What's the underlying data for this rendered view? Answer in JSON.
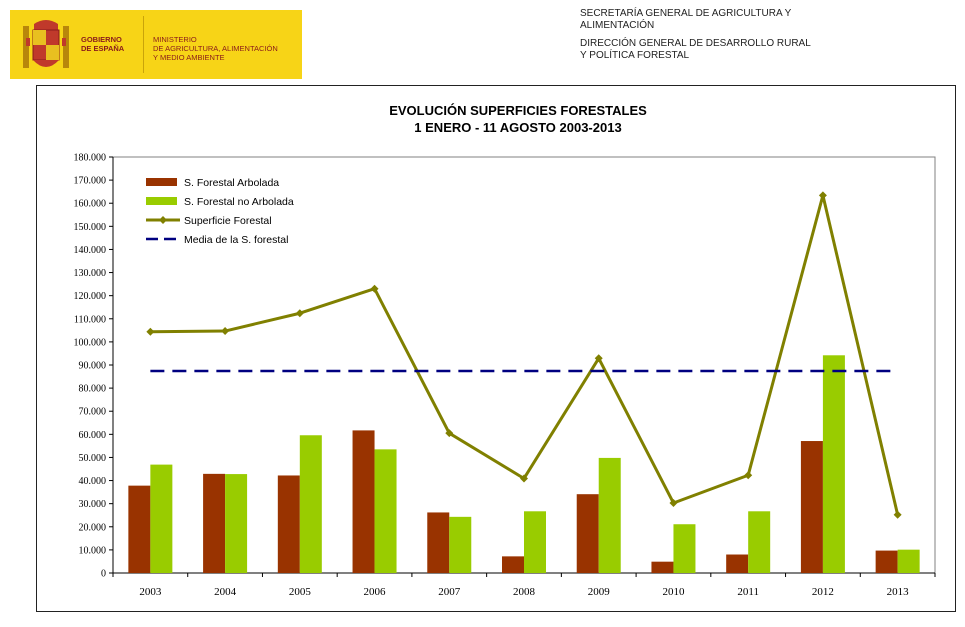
{
  "header": {
    "gov_line": "GOBIERNO\nDE ESPAÑA",
    "ministry": "MINISTERIO\nDE AGRICULTURA, ALIMENTACIÓN\nY MEDIO AMBIENTE",
    "secretaria": "SECRETARÍA GENERAL DE AGRICULTURA Y\nALIMENTACIÓN",
    "direccion": "DIRECCIÓN GENERAL DE DESARROLLO RURAL\nY POLÍTICA FORESTAL"
  },
  "chart_data": {
    "type": "bar",
    "title": "EVOLUCIÓN SUPERFICIES FORESTALES",
    "subtitle": "1 ENERO - 11 AGOSTO 2003-2013",
    "categories": [
      "2003",
      "2004",
      "2005",
      "2006",
      "2007",
      "2008",
      "2009",
      "2010",
      "2011",
      "2012",
      "2013"
    ],
    "ylim": [
      0,
      180000
    ],
    "ytick_labels": [
      "0",
      "10.000",
      "20.000",
      "30.000",
      "40.000",
      "50.000",
      "60.000",
      "70.000",
      "80.000",
      "90.000",
      "100.000",
      "110.000",
      "120.000",
      "130.000",
      "140.000",
      "150.000",
      "160.000",
      "170.000",
      "180.000"
    ],
    "legend_position": "top-left",
    "grid": false,
    "series": [
      {
        "name": "S. Forestal Arbolada",
        "type": "bar",
        "color": "#993300",
        "values": [
          37800,
          42900,
          42200,
          61700,
          26200,
          7200,
          34100,
          4900,
          8000,
          57100,
          9700
        ]
      },
      {
        "name": "S. Forestal no Arbolada",
        "type": "bar",
        "color": "#99cc00",
        "values": [
          46900,
          42800,
          59600,
          53500,
          24300,
          26700,
          49800,
          21100,
          26700,
          94200,
          10100
        ]
      },
      {
        "name": "Superficie Forestal",
        "type": "line",
        "color": "#808000",
        "marker": "diamond",
        "values": [
          104400,
          104700,
          112400,
          123000,
          60500,
          40900,
          92900,
          30300,
          42300,
          163400,
          25200
        ]
      },
      {
        "name": "Media de la S. forestal",
        "type": "line",
        "color": "#000080",
        "dash": "dashed",
        "values": [
          87400,
          87400,
          87400,
          87400,
          87400,
          87400,
          87400,
          87400,
          87400,
          87400,
          87400
        ]
      }
    ]
  }
}
